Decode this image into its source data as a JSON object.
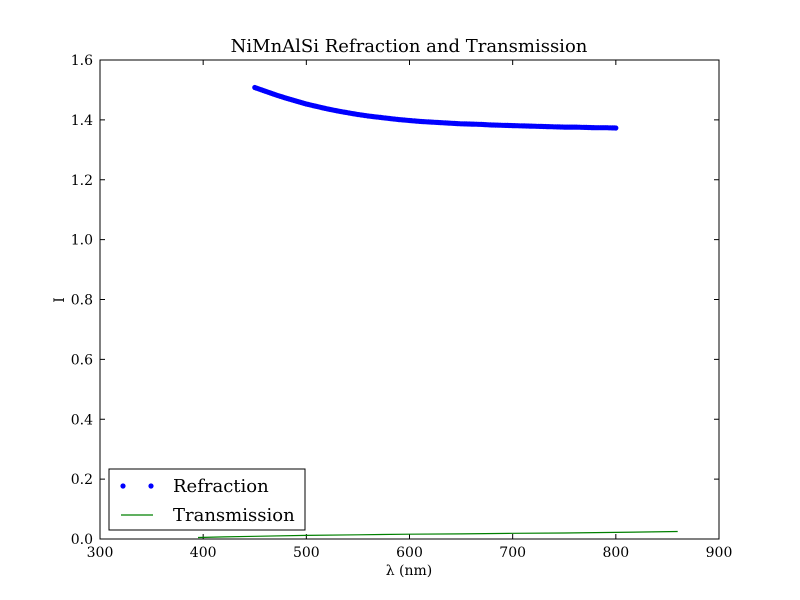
{
  "chart_data": {
    "type": "line",
    "title": "NiMnAlSi Refraction and Transmission",
    "xlabel": "λ (nm)",
    "ylabel": "I",
    "xlim": [
      300,
      900
    ],
    "ylim": [
      0.0,
      1.6
    ],
    "xticks": [
      300,
      400,
      500,
      600,
      700,
      800,
      900
    ],
    "yticks": [
      0.0,
      0.2,
      0.4,
      0.6,
      0.8,
      1.0,
      1.2,
      1.4,
      1.6
    ],
    "xtick_labels": [
      "300",
      "400",
      "500",
      "600",
      "700",
      "800",
      "900"
    ],
    "ytick_labels": [
      "0.0",
      "0.2",
      "0.4",
      "0.6",
      "0.8",
      "1.0",
      "1.2",
      "1.4",
      "1.6"
    ],
    "grid": false,
    "legend_position": "lower-left",
    "series": [
      {
        "name": "Refraction",
        "style": "markers",
        "color": "#0000ff",
        "x": [
          450,
          460,
          470,
          480,
          490,
          500,
          510,
          520,
          530,
          540,
          550,
          560,
          570,
          580,
          590,
          600,
          610,
          620,
          630,
          640,
          650,
          660,
          670,
          680,
          690,
          700,
          710,
          720,
          730,
          740,
          750,
          760,
          770,
          780,
          790,
          800
        ],
        "y": [
          1.508,
          1.496,
          1.484,
          1.473,
          1.463,
          1.453,
          1.445,
          1.437,
          1.43,
          1.424,
          1.418,
          1.413,
          1.409,
          1.405,
          1.401,
          1.398,
          1.395,
          1.393,
          1.391,
          1.389,
          1.387,
          1.386,
          1.385,
          1.383,
          1.382,
          1.381,
          1.38,
          1.379,
          1.378,
          1.377,
          1.376,
          1.376,
          1.375,
          1.374,
          1.374,
          1.373
        ]
      },
      {
        "name": "Transmission",
        "style": "line",
        "color": "#008000",
        "x": [
          395,
          420,
          450,
          500,
          550,
          600,
          650,
          700,
          750,
          800,
          860
        ],
        "y": [
          0.005,
          0.007,
          0.009,
          0.012,
          0.014,
          0.016,
          0.017,
          0.019,
          0.02,
          0.022,
          0.025
        ]
      }
    ]
  }
}
